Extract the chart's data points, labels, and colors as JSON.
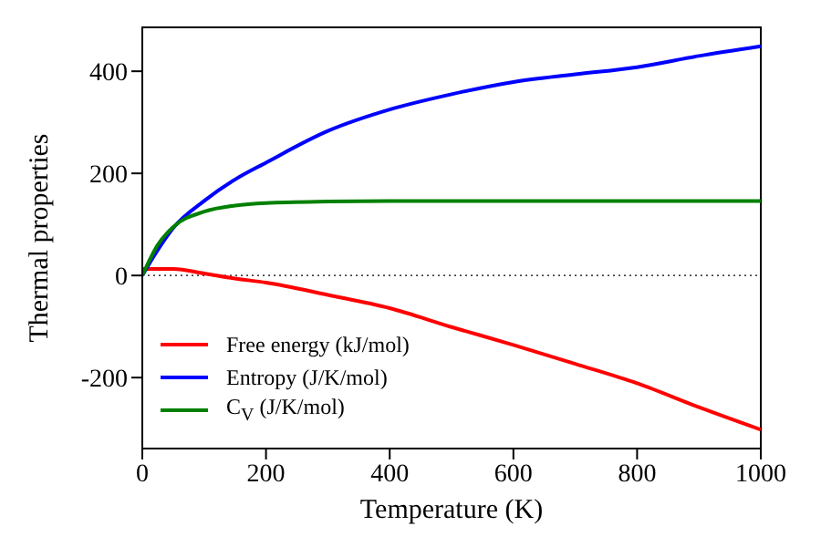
{
  "chart_data": {
    "type": "line",
    "xlabel": "Temperature (K)",
    "ylabel": "Thermal properties",
    "x": [
      0,
      25,
      50,
      100,
      150,
      200,
      300,
      400,
      500,
      600,
      700,
      800,
      900,
      1000
    ],
    "series": [
      {
        "name": "Free energy (kJ/mol)",
        "color": "#ff0000",
        "values": [
          13,
          13,
          13,
          4,
          -6,
          -14,
          -38,
          -64,
          -101,
          -136,
          -173,
          -211,
          -258,
          -302
        ]
      },
      {
        "name": "Entropy (J/K/mol)",
        "color": "#0000ff",
        "values": [
          0,
          50,
          93,
          146,
          188,
          221,
          283,
          325,
          355,
          379,
          394,
          408,
          430,
          449
        ]
      },
      {
        "name": "C$_{V}$ (J/K/mol)",
        "color": "#008000",
        "values": [
          0,
          60,
          95,
          125,
          137,
          142,
          145,
          146,
          146,
          146,
          146,
          146,
          146,
          146
        ]
      }
    ],
    "xlim": [
      0,
      1000
    ],
    "xticks": [
      0,
      200,
      400,
      600,
      800,
      1000
    ],
    "ylim": [
      -339,
      486
    ],
    "yticks": [
      -200,
      0,
      200,
      400
    ],
    "ref_lines": [
      {
        "axis": "y",
        "value": 0,
        "color": "#000000",
        "line_style": "dotted"
      }
    ],
    "legend": "bottom left",
    "marker": "none",
    "line_style": "solid",
    "grid": false
  }
}
